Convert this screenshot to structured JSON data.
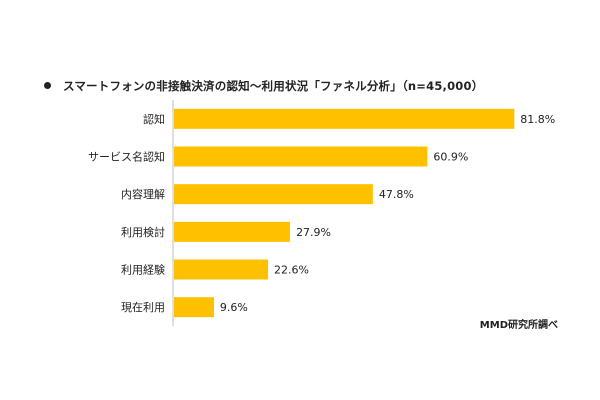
{
  "chart_data": {
    "type": "bar",
    "orientation": "horizontal",
    "title": "スマートフォンの非接触決済の認知～利用状況「ファネル分析」（n=45,000）",
    "source": "MMD研究所調べ",
    "categories": [
      "認知",
      "サービス名認知",
      "内容理解",
      "利用検討",
      "利用経験",
      "現在利用"
    ],
    "values": [
      81.8,
      60.9,
      47.8,
      27.9,
      22.6,
      9.6
    ],
    "value_labels": [
      "81.8%",
      "60.9%",
      "47.8%",
      "27.9%",
      "22.6%",
      "9.6%"
    ],
    "xlim": [
      0,
      100
    ],
    "grid": false,
    "legend": "none",
    "bar_color": "#FFC000",
    "axis_color": "#BFBFBF"
  }
}
